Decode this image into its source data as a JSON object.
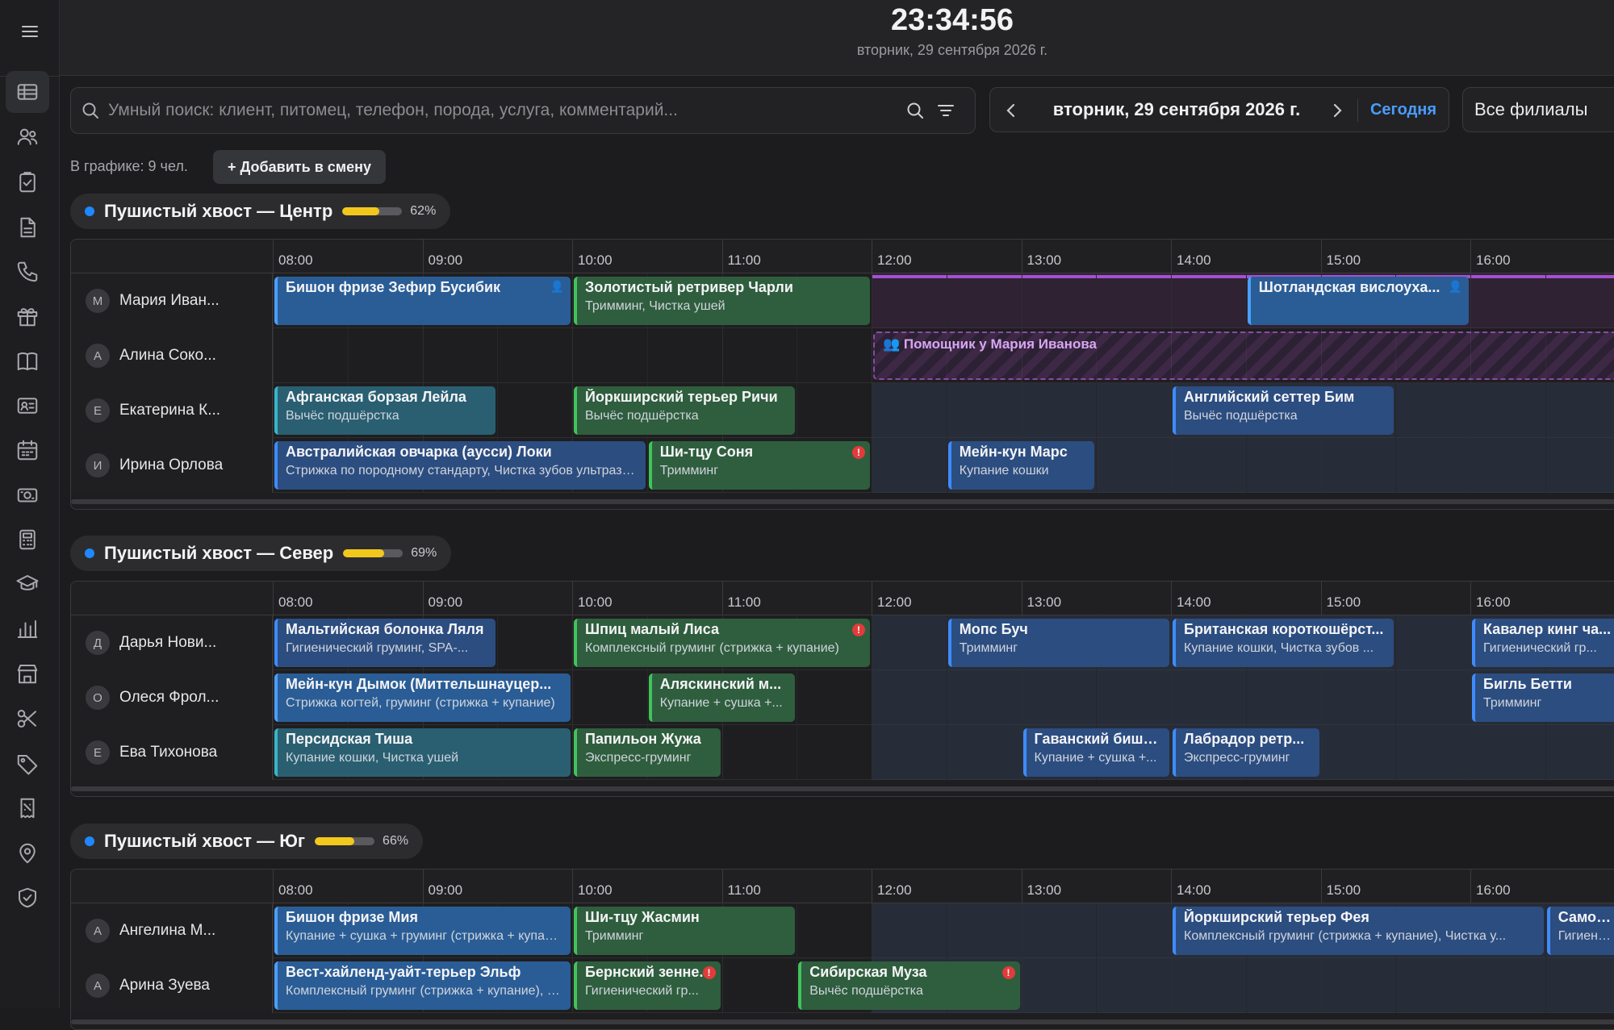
{
  "clock": {
    "time": "23:34:56",
    "date": "вторник, 29 сентября 2026 г."
  },
  "sidebar": {
    "icons": [
      "menu-icon",
      "schedule-table-icon",
      "clients-icon",
      "tasks-icon",
      "documents-icon",
      "phone-icon",
      "gift-icon",
      "book-icon",
      "contact-card-icon",
      "calendar-icon",
      "cash-icon",
      "calculator-icon",
      "education-icon",
      "stats-icon",
      "store-icon",
      "scissors-icon",
      "tag-icon",
      "receipt-icon",
      "location-icon",
      "shield-icon"
    ]
  },
  "search": {
    "placeholder": "Умный поиск: клиент, питомец, телефон, порода, услуга, комментарий..."
  },
  "date_nav": {
    "label": "вторник, 29 сентября 2026 г.",
    "today": "Сегодня"
  },
  "branch_filter": "Все филиалы",
  "toolbar": {
    "staff_count": "В графике: 9 чел.",
    "add_shift": "+ Добавить в смену"
  },
  "hours": [
    "08:00",
    "09:00",
    "10:00",
    "11:00",
    "12:00",
    "13:00",
    "14:00",
    "15:00",
    "16:00"
  ],
  "colors": {
    "accent": "#4a9bff",
    "branch_dot": "#1e88ff",
    "progress": "#f2c81d",
    "groom": "#3e8cff",
    "spa": "#41c35c",
    "assist": "#a650d2",
    "warning": "#e23b3b"
  },
  "branches": [
    {
      "name": "Пушистый хвост — Центр",
      "load": 0.62,
      "load_label": "62%",
      "rows": [
        {
          "initial": "М",
          "name": "Мария Иван...",
          "shift_purple": true,
          "appts": [
            {
              "start": 8.0,
              "end": 10.0,
              "color": "blue2",
              "t1": "Бишон фризе Зефир Бусибик",
              "t2": "",
              "icon": true
            },
            {
              "start": 10.0,
              "end": 12.0,
              "color": "green",
              "t1": "Золотистый ретривер Чарли",
              "t2": "Тримминг, Чистка ушей"
            },
            {
              "start": 14.5,
              "end": 16.0,
              "color": "blue2",
              "t1": "Шотландская вислоуха...",
              "t2": "",
              "icon": true
            }
          ]
        },
        {
          "initial": "А",
          "name": "Алина Соко...",
          "assist": {
            "start": 12.0,
            "end": 17.0,
            "label": "👥 Помощник у Мария Иванова"
          },
          "appts": []
        },
        {
          "initial": "Е",
          "name": "Екатерина К...",
          "appts": [
            {
              "start": 8.0,
              "end": 9.5,
              "color": "teal",
              "t1": "Афганская борзая Лейла",
              "t2": "Вычёс подшёрстка"
            },
            {
              "start": 10.0,
              "end": 11.5,
              "color": "green",
              "t1": "Йоркширский терьер Ричи",
              "t2": "Вычёс подшёрстка"
            },
            {
              "start": 14.0,
              "end": 15.5,
              "color": "blue",
              "t1": "Английский сеттер Бим",
              "t2": "Вычёс подшёрстка"
            }
          ]
        },
        {
          "initial": "И",
          "name": "Ирина Орлова",
          "appts": [
            {
              "start": 8.0,
              "end": 10.5,
              "color": "blue",
              "t1": "Австралийская овчарка (аусси) Локи",
              "t2": "Стрижка по породному стандарту, Чистка зубов ультразвуком"
            },
            {
              "start": 10.5,
              "end": 12.0,
              "color": "green",
              "t1": "Ши-тцу Соня",
              "t2": "Тримминг",
              "warn": true
            },
            {
              "start": 12.5,
              "end": 13.5,
              "color": "blue",
              "t1": "Мейн-кун Марс",
              "t2": "Купание кошки"
            }
          ]
        }
      ]
    },
    {
      "name": "Пушистый хвост — Север",
      "load": 0.69,
      "load_label": "69%",
      "rows": [
        {
          "initial": "Д",
          "name": "Дарья Нови...",
          "appts": [
            {
              "start": 8.0,
              "end": 9.5,
              "color": "blue",
              "t1": "Мальтийская болонка Ляля",
              "t2": "Гигиенический груминг, SPA-..."
            },
            {
              "start": 10.0,
              "end": 12.0,
              "color": "green",
              "t1": "Шпиц малый Лиса",
              "t2": "Комплексный груминг (стрижка + купание)",
              "warn": true
            },
            {
              "start": 12.5,
              "end": 14.0,
              "color": "blue",
              "t1": "Мопс Буч",
              "t2": "Тримминг"
            },
            {
              "start": 14.0,
              "end": 15.5,
              "color": "blue",
              "t1": "Британская короткошёрст...",
              "t2": "Купание кошки, Чистка зубов ..."
            },
            {
              "start": 16.0,
              "end": 17.0,
              "color": "blue",
              "t1": "Кавалер кинг ча...",
              "t2": "Гигиенический гр..."
            }
          ]
        },
        {
          "initial": "О",
          "name": "Олеся Фрол...",
          "appts": [
            {
              "start": 8.0,
              "end": 10.0,
              "color": "blue2",
              "t1": "Мейн-кун Дымок (Миттельшнауцер...",
              "t2": "Стрижка когтей, груминг (стрижка + купание)"
            },
            {
              "start": 10.5,
              "end": 11.5,
              "color": "green",
              "t1": "Аляскинский м...",
              "t2": "Купание + сушка +..."
            },
            {
              "start": 16.0,
              "end": 17.0,
              "color": "blue",
              "t1": "Бигль Бетти",
              "t2": "Тримминг"
            }
          ]
        },
        {
          "initial": "Е",
          "name": "Ева Тихонова",
          "appts": [
            {
              "start": 8.0,
              "end": 10.0,
              "color": "teal",
              "t1": "Персидская Тиша",
              "t2": "Купание кошки, Чистка ушей"
            },
            {
              "start": 10.0,
              "end": 11.0,
              "color": "green",
              "t1": "Папильон Жужа",
              "t2": "Экспресс-груминг"
            },
            {
              "start": 13.0,
              "end": 14.0,
              "color": "blue",
              "t1": "Гаванский бишо...",
              "t2": "Купание + сушка +..."
            },
            {
              "start": 14.0,
              "end": 15.0,
              "color": "blue",
              "t1": "Лабрадор ретр...",
              "t2": "Экспресс-груминг"
            }
          ]
        }
      ]
    },
    {
      "name": "Пушистый хвост — Юг",
      "load": 0.66,
      "load_label": "66%",
      "rows": [
        {
          "initial": "А",
          "name": "Ангелина М...",
          "appts": [
            {
              "start": 8.0,
              "end": 10.0,
              "color": "blue2",
              "t1": "Бишон фризе Мия",
              "t2": "Купание + сушка + груминг (стрижка + купание)"
            },
            {
              "start": 10.0,
              "end": 11.5,
              "color": "green",
              "t1": "Ши-тцу Жасмин",
              "t2": "Тримминг"
            },
            {
              "start": 14.0,
              "end": 16.5,
              "color": "blue",
              "t1": "Йоркширский терьер Фея",
              "t2": "Комплексный груминг (стрижка + купание), Чистка у..."
            },
            {
              "start": 16.5,
              "end": 17.0,
              "color": "blue",
              "t1": "Самоед",
              "t2": "Гигиенич..."
            }
          ]
        },
        {
          "initial": "А",
          "name": "Арина Зуева",
          "appts": [
            {
              "start": 8.0,
              "end": 10.0,
              "color": "blue2",
              "t1": "Вест-хайленд-уайт-терьер Эльф",
              "t2": "Комплексный груминг (стрижка + купание), SPA-уход"
            },
            {
              "start": 10.0,
              "end": 11.0,
              "color": "green",
              "t1": "Бернский зенне...",
              "t2": "Гигиенический гр...",
              "warn": true
            },
            {
              "start": 11.5,
              "end": 13.0,
              "color": "green",
              "t1": "Сибирская Муза",
              "t2": "Вычёс подшёрстка",
              "warn": true
            }
          ]
        }
      ]
    }
  ]
}
